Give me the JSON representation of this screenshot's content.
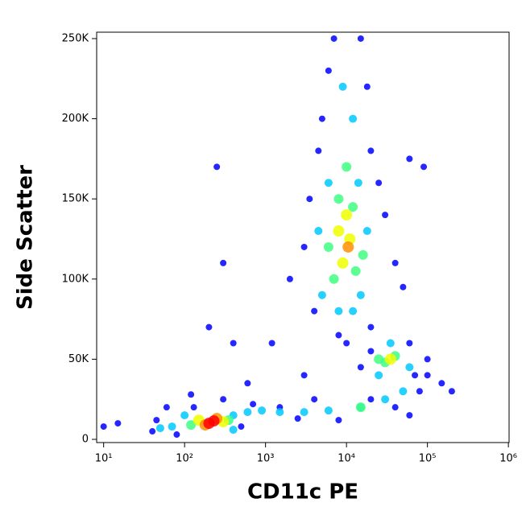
{
  "chart_data": {
    "type": "scatter",
    "x_label": "CD11c PE",
    "y_label": "Side Scatter",
    "xlog": true,
    "xlim": [
      8.2,
      1020000
    ],
    "ylim": [
      -2000,
      254000
    ],
    "xticks": [
      {
        "value": 10,
        "label": "10¹"
      },
      {
        "value": 100,
        "label": "10²"
      },
      {
        "value": 1000,
        "label": "10³"
      },
      {
        "value": 10000,
        "label": "10⁴"
      },
      {
        "value": 100000,
        "label": "10⁵"
      },
      {
        "value": 1000000,
        "label": "10⁶"
      }
    ],
    "yticks": [
      0,
      {
        "value": 50000,
        "label": "50K"
      },
      {
        "value": 100000,
        "label": "100K"
      },
      {
        "value": 150000,
        "label": "150K"
      },
      {
        "value": 200000,
        "label": "200K"
      },
      {
        "value": 250000,
        "label": "250K"
      }
    ],
    "series": [
      {
        "color": "#0000ff",
        "x": [
          40,
          60,
          80,
          120,
          300,
          500,
          700,
          1500,
          2500,
          4000,
          8000,
          20000,
          40000,
          60000,
          80000,
          100000,
          150000,
          200000,
          15,
          10,
          1200,
          2000,
          3000,
          3500,
          4000,
          4500,
          5000,
          6000,
          7000,
          15000,
          18000,
          20000,
          25000,
          30000,
          40000,
          50000,
          20000,
          60000,
          70000,
          15000,
          20000,
          300,
          250,
          400,
          200,
          8000,
          10000,
          60000,
          90000,
          100000,
          3000,
          600,
          130,
          45
        ],
        "y": [
          5000,
          20000,
          3000,
          28000,
          25000,
          8000,
          22000,
          20000,
          13000,
          25000,
          12000,
          25000,
          20000,
          15000,
          30000,
          40000,
          35000,
          30000,
          10000,
          8000,
          60000,
          100000,
          120000,
          150000,
          80000,
          180000,
          200000,
          230000,
          250000,
          250000,
          220000,
          180000,
          160000,
          140000,
          110000,
          95000,
          70000,
          60000,
          40000,
          45000,
          55000,
          110000,
          170000,
          60000,
          70000,
          65000,
          60000,
          175000,
          170000,
          50000,
          40000,
          35000,
          20000,
          12000
        ]
      },
      {
        "color": "#00c8ff",
        "x": [
          70,
          100,
          400,
          600,
          900,
          1500,
          3000,
          6000,
          15000,
          30000,
          50000,
          60000,
          25000,
          35000,
          5000,
          15000,
          6000,
          14000,
          12000,
          9000,
          4500,
          18000,
          8000,
          12000,
          400,
          50
        ],
        "y": [
          8000,
          15000,
          15000,
          17000,
          18000,
          17000,
          17000,
          18000,
          20000,
          25000,
          30000,
          45000,
          40000,
          60000,
          90000,
          90000,
          160000,
          160000,
          200000,
          220000,
          130000,
          130000,
          80000,
          80000,
          6000,
          7000
        ]
      },
      {
        "color": "#40ff80",
        "x": [
          120,
          350,
          30000,
          40000,
          25000,
          7000,
          13000,
          8000,
          12000,
          6000,
          16000,
          10000,
          15000
        ],
        "y": [
          9000,
          12000,
          48000,
          52000,
          50000,
          100000,
          105000,
          150000,
          145000,
          120000,
          115000,
          170000,
          20000
        ]
      },
      {
        "color": "#f0ff00",
        "x": [
          150,
          300,
          9000,
          11000,
          10000,
          8000,
          35000
        ],
        "y": [
          12000,
          11000,
          110000,
          125000,
          140000,
          130000,
          50000
        ]
      },
      {
        "color": "#ff9000",
        "x": [
          180,
          250,
          10500
        ],
        "y": [
          9000,
          13000,
          120000
        ]
      },
      {
        "color": "#ff0000",
        "x": [
          200,
          230
        ],
        "y": [
          10000,
          11500
        ]
      }
    ]
  }
}
